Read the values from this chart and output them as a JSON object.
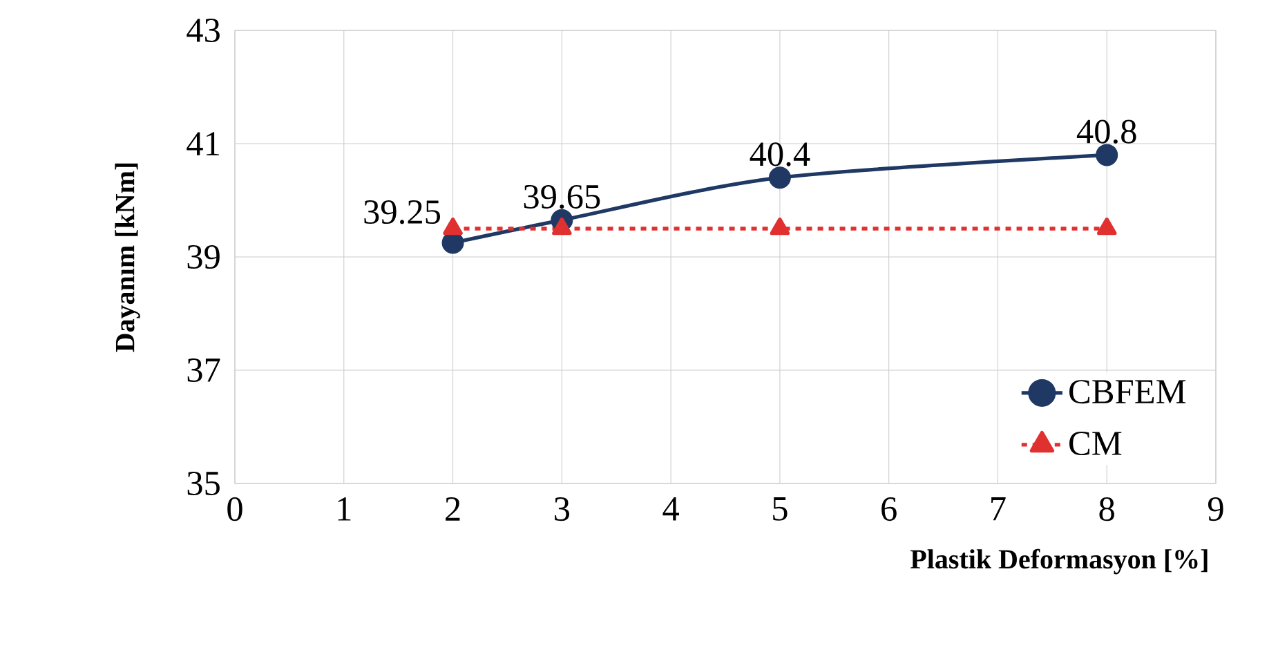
{
  "chart_data": {
    "type": "line",
    "xlabel": "Plastik Deformasyon [%]",
    "ylabel": "Dayanım [kNm]",
    "xlim": [
      0,
      9
    ],
    "xticks": [
      0,
      1,
      2,
      3,
      4,
      5,
      6,
      7,
      8,
      9
    ],
    "ylim": [
      35,
      43
    ],
    "yticks": [
      35,
      37,
      39,
      41,
      43
    ],
    "grid": true,
    "legend": "bottom right",
    "series": [
      {
        "name": "CBFEM",
        "color": "#1f3864",
        "x": [
          2,
          3,
          5,
          8
        ],
        "values": [
          39.25,
          39.65,
          40.4,
          40.8
        ],
        "value_labels": [
          "39.25",
          "39.65",
          "40.4",
          "40.8"
        ],
        "marker": "circle",
        "line_style": "solid"
      },
      {
        "name": "CM",
        "color": "#e03030",
        "x": [
          2,
          3,
          5,
          8
        ],
        "values": [
          39.5,
          39.5,
          39.5,
          39.5
        ],
        "marker": "triangle",
        "line_style": "dashed"
      }
    ]
  }
}
